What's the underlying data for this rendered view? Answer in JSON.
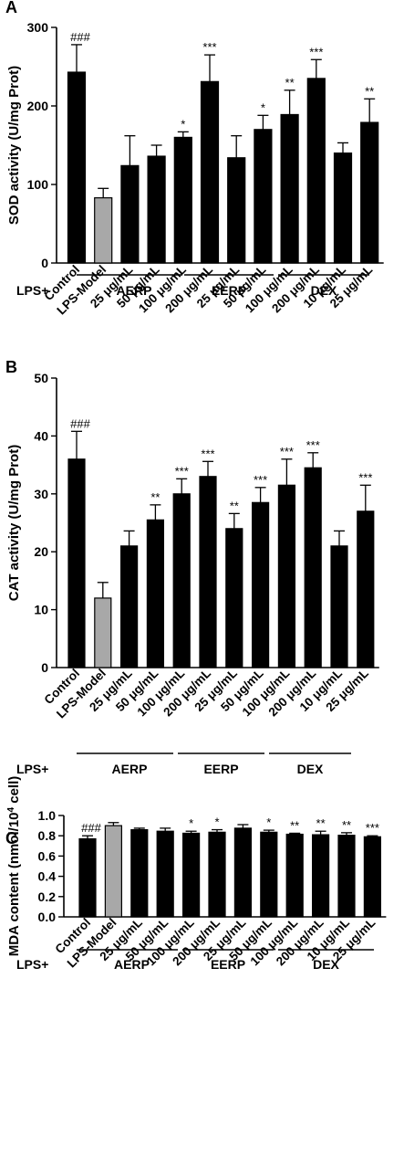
{
  "colors": {
    "bar": "#000000",
    "model_bar": "#a8a8a8",
    "axis": "#000000"
  },
  "group_labels": {
    "prefix": "LPS+",
    "groups": [
      "AERP",
      "EERP",
      "DEX"
    ]
  },
  "chart_data": [
    {
      "panel": "A",
      "type": "bar",
      "ylabel": "SOD activity (U/mg Prot)",
      "ylim": [
        0,
        300
      ],
      "yticks": [
        "0",
        "100",
        "200",
        "300"
      ],
      "categories": [
        "Control",
        "LPS-Model",
        "25 μg/mL",
        "50 μg/mL",
        "100 μg/mL",
        "200 μg/mL",
        "25 μg/mL",
        "50 μg/mL",
        "100 μg/mL",
        "200 μg/mL",
        "10 μg/mL",
        "25 μg/mL"
      ],
      "values": [
        243,
        83,
        124,
        136,
        160,
        231,
        134,
        170,
        189,
        235,
        140,
        179
      ],
      "errors": [
        35,
        12,
        38,
        14,
        7,
        34,
        28,
        18,
        31,
        24,
        13,
        30
      ],
      "significance": [
        "###",
        "",
        "",
        "",
        "*",
        "***",
        "",
        "*",
        "**",
        "***",
        "",
        "**"
      ]
    },
    {
      "panel": "B",
      "type": "bar",
      "ylabel": "CAT activity (U/mg Prot)",
      "ylim": [
        0,
        50
      ],
      "yticks": [
        "0",
        "10",
        "20",
        "30",
        "40",
        "50"
      ],
      "categories": [
        "Control",
        "LPS-Model",
        "25 μg/mL",
        "50 μg/mL",
        "100 μg/mL",
        "200 μg/mL",
        "25 μg/mL",
        "50 μg/mL",
        "100 μg/mL",
        "200 μg/mL",
        "10 μg/mL",
        "25 μg/mL"
      ],
      "values": [
        36,
        12,
        21,
        25.5,
        30,
        33,
        24,
        28.5,
        31.5,
        34.5,
        21,
        27
      ],
      "errors": [
        4.8,
        2.7,
        2.6,
        2.6,
        2.6,
        2.6,
        2.6,
        2.6,
        4.5,
        2.6,
        2.6,
        4.5
      ],
      "significance": [
        "###",
        "",
        "",
        "**",
        "***",
        "***",
        "**",
        "***",
        "***",
        "***",
        "",
        "***"
      ]
    },
    {
      "panel": "C",
      "type": "bar",
      "ylabel": "MDA content (nmol/10",
      "ylabel_sup": "4",
      "ylabel_suffix": " cell)",
      "ylim": [
        0,
        1.0
      ],
      "yticks": [
        "0.0",
        "0.2",
        "0.4",
        "0.6",
        "0.8",
        "1.0"
      ],
      "categories": [
        "Control",
        "LPS-Model",
        "25 μg/mL",
        "50 μg/mL",
        "100 μg/mL",
        "200 μg/mL",
        "25 μg/mL",
        "50 μg/mL",
        "100 μg/mL",
        "200 μg/mL",
        "10 μg/mL",
        "25 μg/mL"
      ],
      "values": [
        0.77,
        0.9,
        0.86,
        0.845,
        0.825,
        0.835,
        0.875,
        0.835,
        0.815,
        0.81,
        0.805,
        0.79
      ],
      "errors": [
        0.03,
        0.03,
        0.015,
        0.03,
        0.02,
        0.025,
        0.035,
        0.02,
        0.01,
        0.035,
        0.025,
        0.01
      ],
      "significance": [
        "###",
        "",
        "",
        "",
        "*",
        "*",
        "",
        "*",
        "**",
        "**",
        "**",
        "***"
      ]
    }
  ]
}
